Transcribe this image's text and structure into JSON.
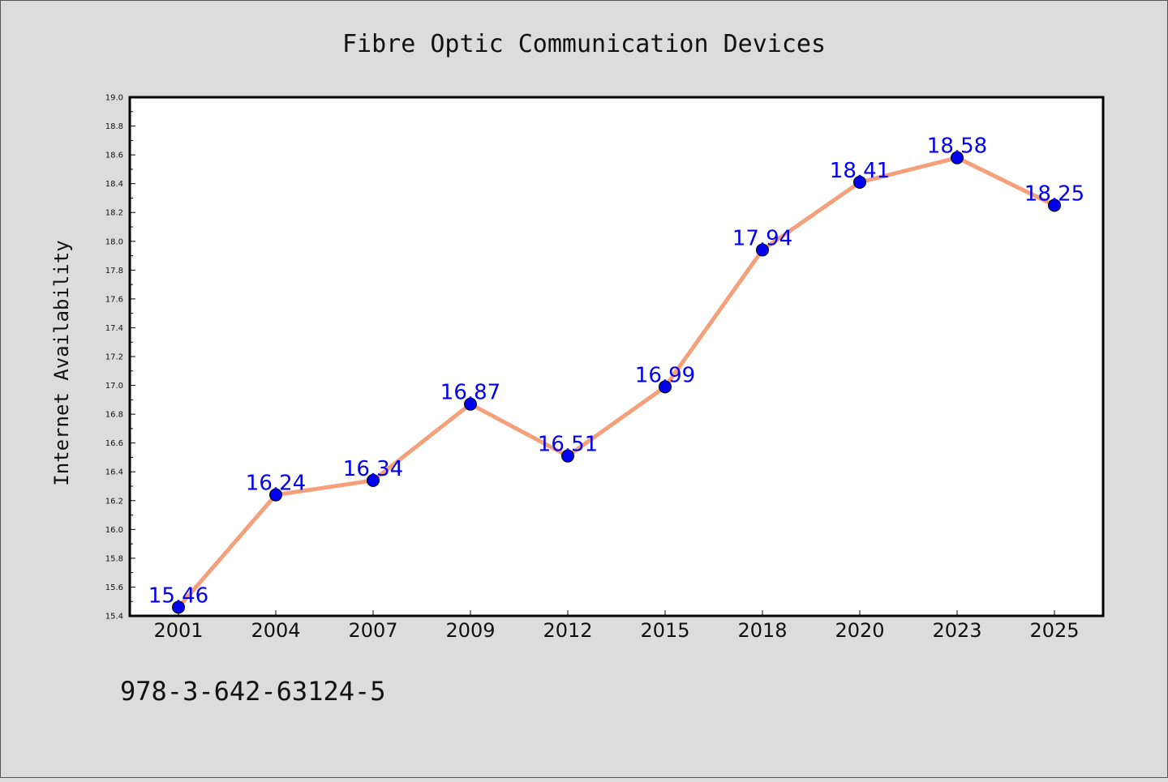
{
  "chart_data": {
    "type": "line",
    "title": "Fibre Optic Communication Devices",
    "xlabel": "",
    "ylabel": "Internet Availability",
    "categories": [
      "2001",
      "2004",
      "2007",
      "2009",
      "2012",
      "2015",
      "2018",
      "2020",
      "2023",
      "2025"
    ],
    "series": [
      {
        "values": [
          15.46,
          16.24,
          16.34,
          16.87,
          16.51,
          16.99,
          17.94,
          18.41,
          18.58,
          18.25
        ]
      }
    ],
    "data_labels": [
      "15.46",
      "16.24",
      "16.34",
      "16.87",
      "16.51",
      "16.99",
      "17.94",
      "18.41",
      "18.58",
      "18.25"
    ],
    "ylim": [
      15.4,
      19.0
    ],
    "yticks": [
      "15.4",
      "15.6",
      "15.8",
      "16.0",
      "16.2",
      "16.4",
      "16.6",
      "16.8",
      "17.0",
      "17.2",
      "17.4",
      "17.6",
      "17.8",
      "18.0",
      "18.2",
      "18.4",
      "18.6",
      "18.8",
      "19.0"
    ],
    "grid": false,
    "legend": "none",
    "colors": {
      "line": "#f4a07a",
      "marker": "#0000ee",
      "label": "#0000ee",
      "background": "#dcdcdc",
      "plot_background": "#ffffff"
    }
  },
  "footer": {
    "text": "978-3-642-63124-5"
  }
}
